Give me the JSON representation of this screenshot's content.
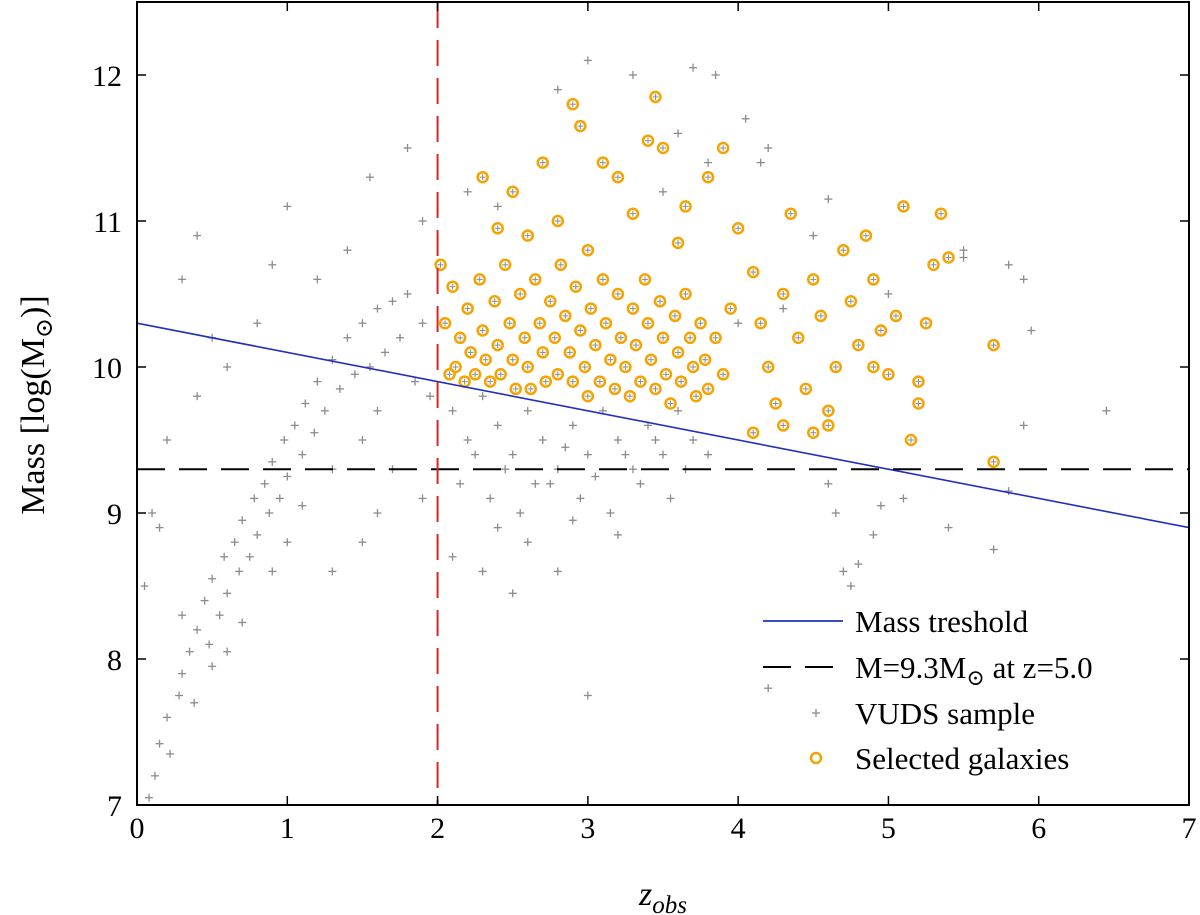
{
  "chart_data": {
    "type": "scatter",
    "xlabel": "z",
    "xlabel_sub": "obs",
    "ylabel_prefix": "Mass [log(M",
    "ylabel_sun": "⊙",
    "ylabel_suffix": ")]",
    "xlim": [
      0,
      7
    ],
    "ylim": [
      7,
      12.5
    ],
    "xticks": [
      0,
      1,
      2,
      3,
      4,
      5,
      6,
      7
    ],
    "yticks": [
      7,
      8,
      9,
      10,
      11,
      12
    ],
    "legend_position": "bottom-right",
    "mass_threshold": {
      "name": "Mass treshold",
      "x": [
        0,
        7
      ],
      "y": [
        10.3,
        8.9
      ],
      "color": "#1f2fbf"
    },
    "mass_limit": {
      "name_prefix": "M=9.3M",
      "name_sun": "⊙",
      "name_suffix": " at z=5.0",
      "y": 9.3,
      "color": "#000000"
    },
    "z_cut": {
      "x": 2.0,
      "color": "#d62728"
    },
    "series": [
      {
        "name": "VUDS sample",
        "marker": "plus",
        "color": "#8c8c8c",
        "points": [
          [
            0.08,
            7.05
          ],
          [
            0.12,
            7.2
          ],
          [
            0.15,
            7.42
          ],
          [
            0.2,
            7.6
          ],
          [
            0.22,
            7.35
          ],
          [
            0.28,
            7.75
          ],
          [
            0.3,
            7.9
          ],
          [
            0.35,
            8.05
          ],
          [
            0.38,
            7.7
          ],
          [
            0.4,
            8.2
          ],
          [
            0.45,
            8.4
          ],
          [
            0.48,
            8.1
          ],
          [
            0.5,
            8.55
          ],
          [
            0.55,
            8.3
          ],
          [
            0.58,
            8.7
          ],
          [
            0.6,
            8.45
          ],
          [
            0.65,
            8.8
          ],
          [
            0.68,
            8.6
          ],
          [
            0.7,
            8.95
          ],
          [
            0.75,
            8.7
          ],
          [
            0.78,
            9.1
          ],
          [
            0.8,
            8.85
          ],
          [
            0.85,
            9.2
          ],
          [
            0.88,
            9.0
          ],
          [
            0.9,
            9.35
          ],
          [
            0.95,
            9.1
          ],
          [
            0.98,
            9.5
          ],
          [
            1.0,
            9.25
          ],
          [
            1.05,
            9.6
          ],
          [
            1.1,
            9.4
          ],
          [
            1.12,
            9.75
          ],
          [
            1.18,
            9.55
          ],
          [
            1.2,
            9.9
          ],
          [
            1.25,
            9.7
          ],
          [
            1.3,
            10.05
          ],
          [
            1.35,
            9.85
          ],
          [
            1.4,
            10.2
          ],
          [
            1.45,
            9.95
          ],
          [
            1.5,
            10.3
          ],
          [
            1.55,
            10.0
          ],
          [
            1.6,
            10.4
          ],
          [
            1.65,
            10.1
          ],
          [
            1.7,
            10.45
          ],
          [
            1.75,
            10.2
          ],
          [
            1.8,
            10.5
          ],
          [
            1.85,
            9.9
          ],
          [
            1.9,
            10.3
          ],
          [
            1.95,
            9.8
          ],
          [
            0.3,
            8.3
          ],
          [
            0.5,
            7.95
          ],
          [
            0.6,
            8.05
          ],
          [
            0.7,
            8.25
          ],
          [
            0.9,
            8.6
          ],
          [
            1.0,
            8.8
          ],
          [
            1.1,
            9.05
          ],
          [
            1.3,
            9.3
          ],
          [
            1.5,
            9.5
          ],
          [
            1.6,
            9.7
          ],
          [
            0.4,
            9.8
          ],
          [
            0.5,
            10.2
          ],
          [
            0.3,
            10.6
          ],
          [
            0.6,
            10.0
          ],
          [
            0.8,
            10.3
          ],
          [
            0.9,
            10.7
          ],
          [
            0.2,
            9.5
          ],
          [
            0.1,
            9.0
          ],
          [
            0.05,
            8.5
          ],
          [
            0.15,
            8.9
          ],
          [
            1.2,
            10.6
          ],
          [
            1.4,
            10.8
          ],
          [
            1.55,
            11.3
          ],
          [
            1.8,
            11.5
          ],
          [
            1.9,
            11.0
          ],
          [
            1.0,
            11.1
          ],
          [
            0.4,
            10.9
          ],
          [
            1.7,
            9.3
          ],
          [
            1.9,
            9.1
          ],
          [
            1.6,
            9.0
          ],
          [
            1.3,
            8.6
          ],
          [
            1.5,
            8.8
          ],
          [
            2.1,
            9.7
          ],
          [
            2.2,
            9.5
          ],
          [
            2.3,
            9.8
          ],
          [
            2.4,
            9.6
          ],
          [
            2.5,
            9.4
          ],
          [
            2.6,
            9.7
          ],
          [
            2.7,
            9.5
          ],
          [
            2.8,
            9.3
          ],
          [
            2.9,
            9.6
          ],
          [
            3.0,
            9.4
          ],
          [
            3.1,
            9.7
          ],
          [
            3.2,
            9.5
          ],
          [
            3.3,
            9.3
          ],
          [
            3.4,
            9.6
          ],
          [
            3.5,
            9.4
          ],
          [
            3.6,
            9.7
          ],
          [
            3.7,
            9.5
          ],
          [
            2.15,
            9.2
          ],
          [
            2.35,
            9.1
          ],
          [
            2.55,
            9.0
          ],
          [
            2.75,
            9.2
          ],
          [
            2.95,
            9.1
          ],
          [
            3.15,
            9.0
          ],
          [
            3.35,
            9.2
          ],
          [
            3.55,
            9.1
          ],
          [
            2.25,
            9.4
          ],
          [
            2.45,
            9.3
          ],
          [
            2.65,
            9.2
          ],
          [
            2.85,
            9.45
          ],
          [
            3.05,
            9.25
          ],
          [
            3.25,
            9.4
          ],
          [
            3.45,
            9.5
          ],
          [
            3.65,
            9.3
          ],
          [
            2.4,
            8.9
          ],
          [
            2.6,
            8.8
          ],
          [
            2.9,
            8.95
          ],
          [
            3.2,
            8.85
          ],
          [
            2.5,
            8.45
          ],
          [
            2.8,
            8.6
          ],
          [
            3.0,
            7.75
          ],
          [
            2.1,
            8.7
          ],
          [
            2.3,
            8.6
          ],
          [
            3.8,
            9.4
          ],
          [
            4.2,
            7.8
          ],
          [
            4.6,
            9.2
          ],
          [
            4.65,
            9.0
          ],
          [
            4.7,
            8.6
          ],
          [
            4.75,
            8.5
          ],
          [
            4.8,
            8.65
          ],
          [
            4.9,
            8.85
          ],
          [
            4.95,
            9.05
          ],
          [
            5.1,
            9.1
          ],
          [
            5.4,
            8.9
          ],
          [
            5.7,
            8.75
          ],
          [
            5.8,
            9.15
          ],
          [
            5.9,
            9.6
          ],
          [
            6.45,
            9.7
          ],
          [
            5.95,
            10.25
          ],
          [
            5.9,
            10.6
          ],
          [
            5.5,
            10.75
          ],
          [
            3.0,
            12.1
          ],
          [
            3.7,
            12.05
          ],
          [
            3.85,
            12.0
          ],
          [
            3.6,
            11.6
          ],
          [
            3.8,
            11.4
          ],
          [
            4.05,
            11.7
          ],
          [
            4.2,
            11.5
          ],
          [
            4.15,
            11.4
          ],
          [
            3.3,
            12.0
          ],
          [
            2.8,
            11.9
          ],
          [
            3.5,
            11.2
          ],
          [
            2.2,
            11.2
          ],
          [
            2.4,
            11.1
          ],
          [
            4.6,
            11.15
          ],
          [
            4.5,
            10.9
          ],
          [
            5.0,
            10.5
          ],
          [
            5.5,
            10.8
          ],
          [
            5.8,
            10.7
          ],
          [
            4.0,
            10.3
          ],
          [
            4.3,
            10.4
          ]
        ]
      },
      {
        "name": "Selected galaxies",
        "marker": "circle",
        "color": "#f5a300",
        "points": [
          [
            2.02,
            10.7
          ],
          [
            2.05,
            10.3
          ],
          [
            2.08,
            9.95
          ],
          [
            2.1,
            10.55
          ],
          [
            2.12,
            10.0
          ],
          [
            2.15,
            10.2
          ],
          [
            2.18,
            9.9
          ],
          [
            2.2,
            10.4
          ],
          [
            2.22,
            10.1
          ],
          [
            2.25,
            9.95
          ],
          [
            2.28,
            10.6
          ],
          [
            2.3,
            10.25
          ],
          [
            2.32,
            10.05
          ],
          [
            2.35,
            9.9
          ],
          [
            2.38,
            10.45
          ],
          [
            2.4,
            10.15
          ],
          [
            2.42,
            9.95
          ],
          [
            2.45,
            10.7
          ],
          [
            2.48,
            10.3
          ],
          [
            2.5,
            10.05
          ],
          [
            2.52,
            9.85
          ],
          [
            2.55,
            10.5
          ],
          [
            2.58,
            10.2
          ],
          [
            2.6,
            10.0
          ],
          [
            2.62,
            9.85
          ],
          [
            2.65,
            10.6
          ],
          [
            2.68,
            10.3
          ],
          [
            2.7,
            10.1
          ],
          [
            2.72,
            9.9
          ],
          [
            2.75,
            10.45
          ],
          [
            2.78,
            10.2
          ],
          [
            2.8,
            9.95
          ],
          [
            2.82,
            10.7
          ],
          [
            2.85,
            10.35
          ],
          [
            2.88,
            10.1
          ],
          [
            2.9,
            9.9
          ],
          [
            2.92,
            10.55
          ],
          [
            2.95,
            10.25
          ],
          [
            2.98,
            10.0
          ],
          [
            3.0,
            9.8
          ],
          [
            3.02,
            10.4
          ],
          [
            3.05,
            10.15
          ],
          [
            3.08,
            9.9
          ],
          [
            3.1,
            10.6
          ],
          [
            3.12,
            10.3
          ],
          [
            3.15,
            10.05
          ],
          [
            3.18,
            9.85
          ],
          [
            3.2,
            10.5
          ],
          [
            3.22,
            10.2
          ],
          [
            3.25,
            10.0
          ],
          [
            3.28,
            9.8
          ],
          [
            3.3,
            10.4
          ],
          [
            3.32,
            10.15
          ],
          [
            3.35,
            9.9
          ],
          [
            3.38,
            10.6
          ],
          [
            3.4,
            10.3
          ],
          [
            3.42,
            10.05
          ],
          [
            3.45,
            9.85
          ],
          [
            3.48,
            10.45
          ],
          [
            3.5,
            10.2
          ],
          [
            3.52,
            9.95
          ],
          [
            3.55,
            9.75
          ],
          [
            3.58,
            10.35
          ],
          [
            3.6,
            10.1
          ],
          [
            3.62,
            9.9
          ],
          [
            3.65,
            10.5
          ],
          [
            3.68,
            10.2
          ],
          [
            3.7,
            10.0
          ],
          [
            3.72,
            9.8
          ],
          [
            3.75,
            10.3
          ],
          [
            3.78,
            10.05
          ],
          [
            3.8,
            9.85
          ],
          [
            3.85,
            10.2
          ],
          [
            3.9,
            9.95
          ],
          [
            3.95,
            10.4
          ],
          [
            2.3,
            11.3
          ],
          [
            2.5,
            11.2
          ],
          [
            2.7,
            11.4
          ],
          [
            2.8,
            11.0
          ],
          [
            2.9,
            11.8
          ],
          [
            2.95,
            11.65
          ],
          [
            3.1,
            11.4
          ],
          [
            3.2,
            11.3
          ],
          [
            3.4,
            11.55
          ],
          [
            3.45,
            11.85
          ],
          [
            3.5,
            11.5
          ],
          [
            3.65,
            11.1
          ],
          [
            3.9,
            11.5
          ],
          [
            2.4,
            10.95
          ],
          [
            2.6,
            10.9
          ],
          [
            3.0,
            10.8
          ],
          [
            3.3,
            11.05
          ],
          [
            3.6,
            10.85
          ],
          [
            3.8,
            11.3
          ],
          [
            4.0,
            10.95
          ],
          [
            4.1,
            10.65
          ],
          [
            4.15,
            10.3
          ],
          [
            4.2,
            10.0
          ],
          [
            4.25,
            9.75
          ],
          [
            4.3,
            10.5
          ],
          [
            4.35,
            11.05
          ],
          [
            4.4,
            10.2
          ],
          [
            4.45,
            9.85
          ],
          [
            4.5,
            10.6
          ],
          [
            4.55,
            10.35
          ],
          [
            4.6,
            9.6
          ],
          [
            4.65,
            10.0
          ],
          [
            4.7,
            10.8
          ],
          [
            4.75,
            10.45
          ],
          [
            4.8,
            10.15
          ],
          [
            4.85,
            10.9
          ],
          [
            4.9,
            10.6
          ],
          [
            4.95,
            10.25
          ],
          [
            5.0,
            9.95
          ],
          [
            5.05,
            10.35
          ],
          [
            5.1,
            11.1
          ],
          [
            5.15,
            9.5
          ],
          [
            5.2,
            9.9
          ],
          [
            5.25,
            10.3
          ],
          [
            5.3,
            10.7
          ],
          [
            5.35,
            11.05
          ],
          [
            5.4,
            10.75
          ],
          [
            5.7,
            10.15
          ],
          [
            5.7,
            9.35
          ],
          [
            4.5,
            9.55
          ],
          [
            4.6,
            9.7
          ],
          [
            4.3,
            9.6
          ],
          [
            4.1,
            9.55
          ],
          [
            4.9,
            10.0
          ],
          [
            5.2,
            9.75
          ]
        ]
      }
    ]
  }
}
